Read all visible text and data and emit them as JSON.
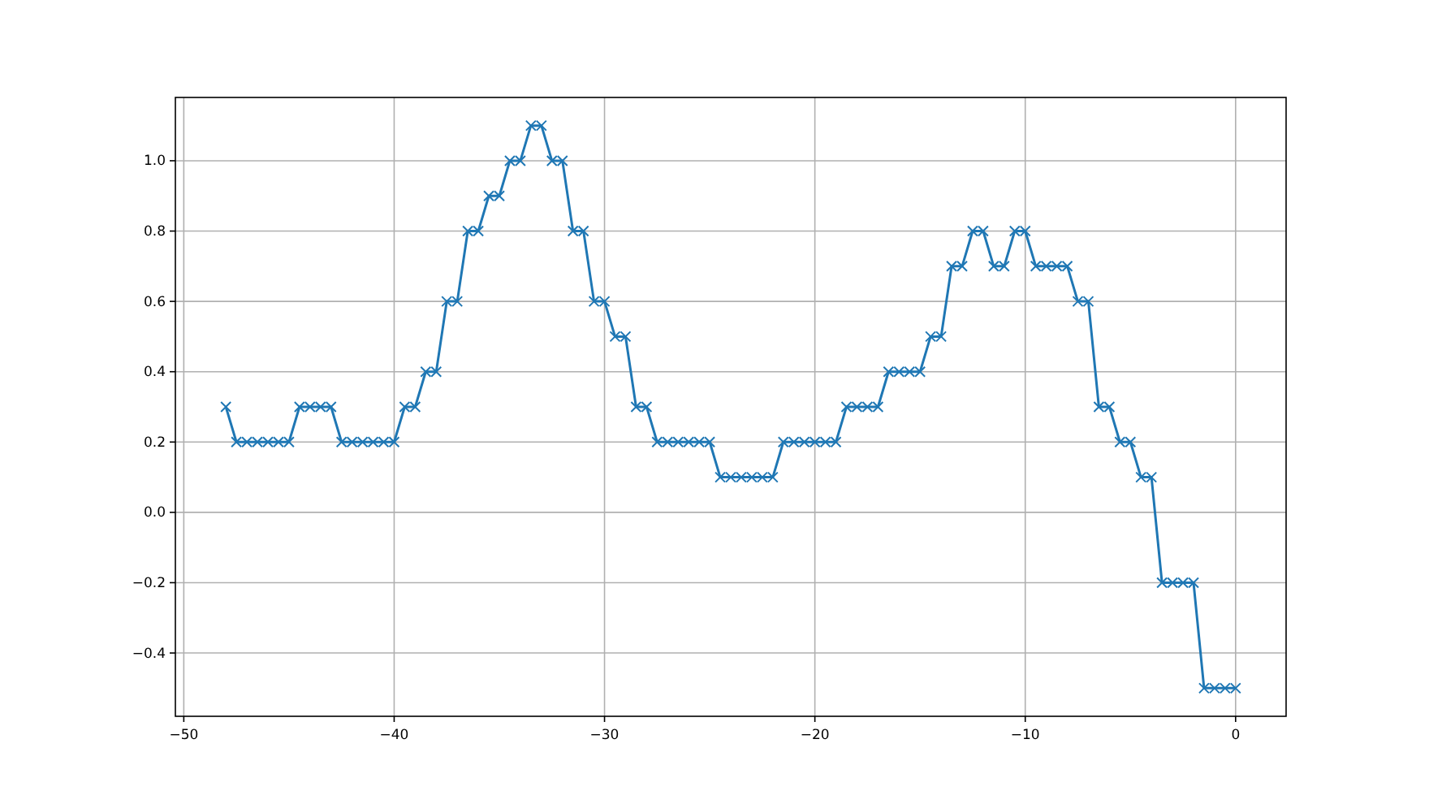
{
  "chart_data": {
    "type": "line",
    "marker": "cross",
    "line_style": "solid",
    "grid": true,
    "x": [
      -48,
      -47.5,
      -47,
      -46.5,
      -46,
      -45.5,
      -45,
      -44.5,
      -44,
      -43.5,
      -43,
      -42.5,
      -42,
      -41.5,
      -41,
      -40.5,
      -40,
      -39.5,
      -39,
      -38.5,
      -38,
      -37.5,
      -37,
      -36.5,
      -36,
      -35.5,
      -35,
      -34.5,
      -34,
      -33.5,
      -33,
      -32.5,
      -32,
      -31.5,
      -31,
      -30.5,
      -30,
      -29.5,
      -29,
      -28.5,
      -28,
      -27.5,
      -27,
      -26.5,
      -26,
      -25.5,
      -25,
      -24.5,
      -24,
      -23.5,
      -23,
      -22.5,
      -22,
      -21.5,
      -21,
      -20.5,
      -20,
      -19.5,
      -19,
      -18.5,
      -18,
      -17.5,
      -17,
      -16.5,
      -16,
      -15.5,
      -15,
      -14.5,
      -14,
      -13.5,
      -13,
      -12.5,
      -12,
      -11.5,
      -11,
      -10.5,
      -10,
      -9.5,
      -9,
      -8.5,
      -8,
      -7.5,
      -7,
      -6.5,
      -6,
      -5.5,
      -5,
      -4.5,
      -4,
      -3.5,
      -3,
      -2.5,
      -2,
      -1.5,
      -1,
      -0.5,
      0
    ],
    "series": [
      {
        "color": "#1f77b4",
        "values": [
          0.3,
          0.2,
          0.2,
          0.2,
          0.2,
          0.2,
          0.2,
          0.3,
          0.3,
          0.3,
          0.3,
          0.2,
          0.2,
          0.2,
          0.2,
          0.2,
          0.2,
          0.3,
          0.3,
          0.4,
          0.4,
          0.6,
          0.6,
          0.8,
          0.8,
          0.9,
          0.9,
          1.0,
          1.0,
          1.1,
          1.1,
          1.0,
          1.0,
          0.8,
          0.8,
          0.6,
          0.6,
          0.5,
          0.5,
          0.3,
          0.3,
          0.2,
          0.2,
          0.2,
          0.2,
          0.2,
          0.2,
          0.1,
          0.1,
          0.1,
          0.1,
          0.1,
          0.1,
          0.2,
          0.2,
          0.2,
          0.2,
          0.2,
          0.2,
          0.3,
          0.3,
          0.3,
          0.3,
          0.4,
          0.4,
          0.4,
          0.4,
          0.5,
          0.5,
          0.7,
          0.7,
          0.8,
          0.8,
          0.7,
          0.7,
          0.8,
          0.8,
          0.7,
          0.7,
          0.7,
          0.7,
          0.6,
          0.6,
          0.3,
          0.3,
          0.2,
          0.2,
          0.1,
          0.1,
          -0.2,
          -0.2,
          -0.2,
          -0.2,
          -0.5,
          -0.5,
          -0.5,
          -0.5
        ]
      }
    ],
    "xlim": [
      -50.4,
      2.4
    ],
    "xticks": [
      {
        "value": -50,
        "label": "−50"
      },
      {
        "value": -40,
        "label": "−40"
      },
      {
        "value": -30,
        "label": "−30"
      },
      {
        "value": -20,
        "label": "−20"
      },
      {
        "value": -10,
        "label": "−10"
      },
      0
    ],
    "ylim": [
      -0.58,
      1.18
    ],
    "yticks": [
      {
        "value": -0.4,
        "label": "−0.4"
      },
      {
        "value": -0.2,
        "label": "−0.2"
      },
      {
        "value": 0,
        "label": "0.0"
      },
      {
        "value": 0.2,
        "label": "0.2"
      },
      {
        "value": 0.4,
        "label": "0.4"
      },
      {
        "value": 0.6,
        "label": "0.6"
      },
      {
        "value": 0.8,
        "label": "0.8"
      },
      {
        "value": 1,
        "label": "1.0"
      }
    ]
  }
}
